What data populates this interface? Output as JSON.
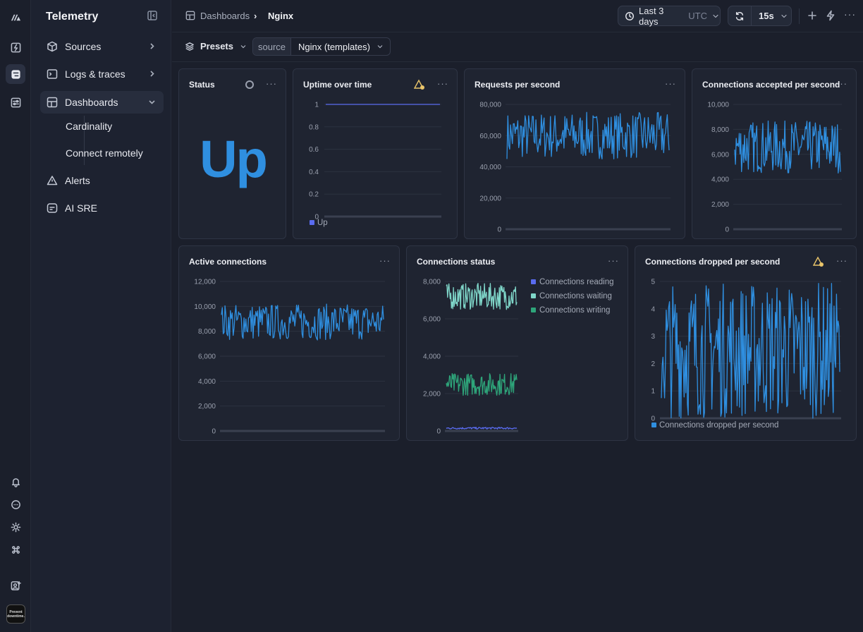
{
  "rail": {
    "icons": [
      "logo-icon",
      "bolt-square-icon",
      "logs-square-icon",
      "sliders-square-icon"
    ],
    "bottom_icons": [
      "bell-icon",
      "chat-icon",
      "sun-icon",
      "command-icon",
      "user-plus-icon"
    ],
    "avatar_text": "Prevent downtime."
  },
  "sidebar": {
    "title": "Telemetry",
    "items": [
      {
        "label": "Sources",
        "icon": "cube-icon"
      },
      {
        "label": "Logs & traces",
        "icon": "terminal-icon"
      },
      {
        "label": "Dashboards",
        "icon": "grid-icon"
      },
      {
        "label": "Alerts",
        "icon": "alert-icon"
      },
      {
        "label": "AI SRE",
        "icon": "ai-icon"
      }
    ],
    "sub_items": [
      "Cardinality",
      "Connect remotely"
    ]
  },
  "topbar": {
    "crumb_root": "Dashboards",
    "crumb_sep": "›",
    "crumb_current": "Nginx",
    "time_range": "Last 3 days",
    "tz": "UTC",
    "refresh": "15s"
  },
  "filters": {
    "presets_label": "Presets",
    "source_key": "source",
    "source_value": "Nginx (templates)"
  },
  "colors": {
    "blue": "#2f8fe0",
    "teal": "#7fd6c9",
    "green": "#2ea57a",
    "indigo": "#5a6cf0",
    "warn": "#e9c46a"
  },
  "panels": {
    "status": {
      "title": "Status",
      "value": "Up"
    },
    "uptime": {
      "title": "Uptime over time"
    },
    "rps": {
      "title": "Requests per second"
    },
    "accepted": {
      "title": "Connections accepted per second"
    },
    "active": {
      "title": "Active connections"
    },
    "conn_status": {
      "title": "Connections status"
    },
    "dropped": {
      "title": "Connections dropped per second"
    }
  },
  "chart_data": [
    {
      "id": "uptime",
      "type": "line",
      "ylim": [
        0,
        1
      ],
      "yticks": [
        "1",
        "0.8",
        "0.6",
        "0.4",
        "0.2",
        "0"
      ],
      "series": [
        {
          "name": "Up",
          "values": [
            1,
            1
          ]
        }
      ]
    },
    {
      "id": "rps",
      "type": "line",
      "ylim": [
        0,
        80000
      ],
      "yticks": [
        "80,000",
        "60,000",
        "40,000",
        "20,000",
        "0"
      ],
      "series": [
        {
          "values_range": [
            45000,
            75000
          ]
        }
      ]
    },
    {
      "id": "accepted",
      "type": "line",
      "ylim": [
        0,
        10000
      ],
      "yticks": [
        "10,000",
        "8,000",
        "6,000",
        "4,000",
        "2,000",
        "0"
      ],
      "series": [
        {
          "values_range": [
            4500,
            8700
          ]
        }
      ]
    },
    {
      "id": "active",
      "type": "line",
      "ylim": [
        0,
        12000
      ],
      "yticks": [
        "12,000",
        "10,000",
        "8,000",
        "6,000",
        "4,000",
        "2,000",
        "0"
      ],
      "series": [
        {
          "values_range": [
            7300,
            10200
          ]
        }
      ]
    },
    {
      "id": "conn_status",
      "type": "line",
      "ylim": [
        0,
        8000
      ],
      "yticks": [
        "8,000",
        "6,000",
        "4,000",
        "2,000",
        "0"
      ],
      "series": [
        {
          "name": "Connections reading",
          "values_range": [
            100,
            200
          ]
        },
        {
          "name": "Connections waiting",
          "values_range": [
            6500,
            7900
          ]
        },
        {
          "name": "Connections writing",
          "values_range": [
            1900,
            3100
          ]
        }
      ]
    },
    {
      "id": "dropped",
      "type": "line",
      "ylim": [
        0,
        5
      ],
      "yticks": [
        "5",
        "4",
        "3",
        "2",
        "1",
        "0"
      ],
      "series": [
        {
          "name": "Connections dropped per second",
          "values_range": [
            0,
            5
          ]
        }
      ]
    }
  ]
}
